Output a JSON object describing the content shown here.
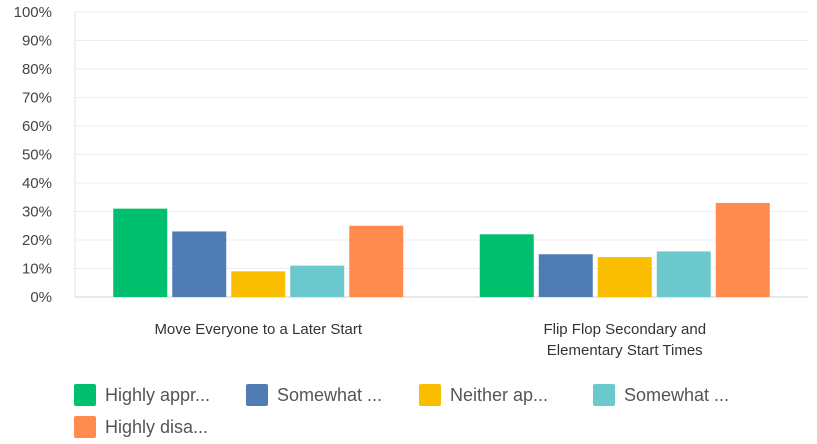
{
  "chart_data": {
    "type": "bar",
    "categories": [
      [
        "Move Everyone to a Later Start"
      ],
      [
        "Flip Flop Secondary and",
        "Elementary Start Times"
      ]
    ],
    "series": [
      {
        "name": "Highly appr...",
        "color": "#00BF6F",
        "values": [
          31,
          22
        ]
      },
      {
        "name": "Somewhat ...",
        "color": "#507CB6",
        "values": [
          23,
          15
        ]
      },
      {
        "name": "Neither ap...",
        "color": "#F9BE00",
        "values": [
          9,
          14
        ]
      },
      {
        "name": "Somewhat ...",
        "color": "#6BC8CD",
        "values": [
          11,
          16
        ]
      },
      {
        "name": "Highly disa...",
        "color": "#FF8B4F",
        "values": [
          25,
          33
        ]
      }
    ],
    "y_ticks": [
      "0%",
      "10%",
      "20%",
      "30%",
      "40%",
      "50%",
      "60%",
      "70%",
      "80%",
      "90%",
      "100%"
    ],
    "ylim": [
      0,
      100
    ],
    "grid": true,
    "legend_position": "bottom"
  }
}
